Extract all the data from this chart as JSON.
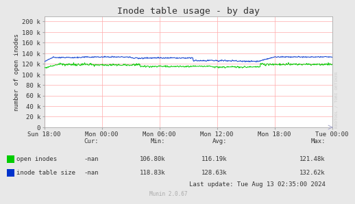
{
  "title": "Inode table usage - by day",
  "ylabel": "number of open inodes",
  "background_color": "#e8e8e8",
  "plot_bg_color": "#ffffff",
  "grid_color": "#ffaaaa",
  "title_color": "#333333",
  "ytick_labels": [
    "0",
    "20 k",
    "40 k",
    "60 k",
    "80 k",
    "100 k",
    "120 k",
    "140 k",
    "160 k",
    "180 k",
    "200 k"
  ],
  "ytick_values": [
    0,
    20000,
    40000,
    60000,
    80000,
    100000,
    120000,
    140000,
    160000,
    180000,
    200000
  ],
  "ylim": [
    0,
    210000
  ],
  "xtick_labels": [
    "Sun 18:00",
    "Mon 00:00",
    "Mon 06:00",
    "Mon 12:00",
    "Mon 18:00",
    "Tue 00:00"
  ],
  "line1_color": "#00cc00",
  "line2_color": "#0033cc",
  "line1_label": "open inodes",
  "line2_label": "inode table size",
  "legend_cur1": "-nan",
  "legend_min1": "106.80k",
  "legend_avg1": "116.19k",
  "legend_max1": "121.48k",
  "legend_cur2": "-nan",
  "legend_min2": "118.83k",
  "legend_avg2": "128.63k",
  "legend_max2": "132.62k",
  "last_update": "Last update: Tue Aug 13 02:35:00 2024",
  "munin_label": "Munin 2.0.67",
  "watermark": "RRDTOOL / TOBI OETIKER",
  "font_color": "#333333",
  "axis_color": "#aaaaaa",
  "watermark_color": "#cccccc"
}
